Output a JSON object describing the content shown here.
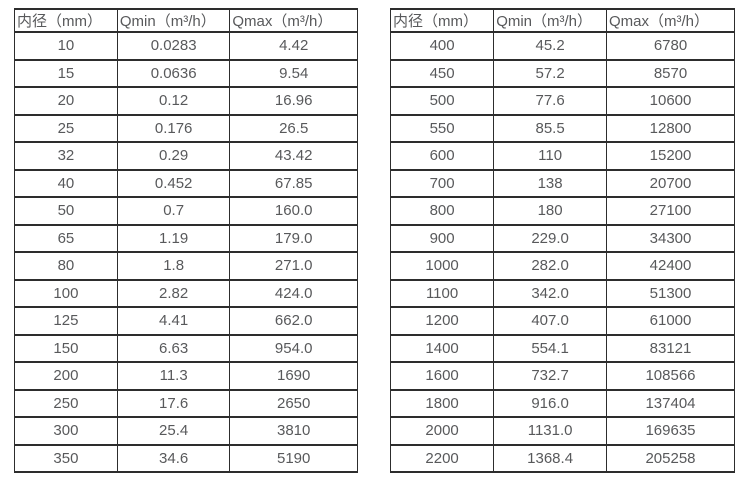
{
  "page": {
    "background_color": "#ffffff",
    "text_color": "#58595b",
    "border_color": "#2d2d2d"
  },
  "tables": [
    {
      "name": "flow-range-table-dn10-350",
      "headers": [
        "内径（mm）",
        "Qmin（m³/h）",
        "Qmax（m³/h）"
      ],
      "rows": [
        [
          "10",
          "0.0283",
          "4.42"
        ],
        [
          "15",
          "0.0636",
          "9.54"
        ],
        [
          "20",
          "0.12",
          "16.96"
        ],
        [
          "25",
          "0.176",
          "26.5"
        ],
        [
          "32",
          "0.29",
          "43.42"
        ],
        [
          "40",
          "0.452",
          "67.85"
        ],
        [
          "50",
          "0.7",
          "160.0"
        ],
        [
          "65",
          "1.19",
          "179.0"
        ],
        [
          "80",
          "1.8",
          "271.0"
        ],
        [
          "100",
          "2.82",
          "424.0"
        ],
        [
          "125",
          "4.41",
          "662.0"
        ],
        [
          "150",
          "6.63",
          "954.0"
        ],
        [
          "200",
          "11.3",
          "1690"
        ],
        [
          "250",
          "17.6",
          "2650"
        ],
        [
          "300",
          "25.4",
          "3810"
        ],
        [
          "350",
          "34.6",
          "5190"
        ]
      ]
    },
    {
      "name": "flow-range-table-dn400-2200",
      "headers": [
        "内径（mm）",
        "Qmin（m³/h）",
        "Qmax（m³/h）"
      ],
      "rows": [
        [
          "400",
          "45.2",
          "6780"
        ],
        [
          "450",
          "57.2",
          "8570"
        ],
        [
          "500",
          "77.6",
          "10600"
        ],
        [
          "550",
          "85.5",
          "12800"
        ],
        [
          "600",
          "110",
          "15200"
        ],
        [
          "700",
          "138",
          "20700"
        ],
        [
          "800",
          "180",
          "27100"
        ],
        [
          "900",
          "229.0",
          "34300"
        ],
        [
          "1000",
          "282.0",
          "42400"
        ],
        [
          "1100",
          "342.0",
          "51300"
        ],
        [
          "1200",
          "407.0",
          "61000"
        ],
        [
          "1400",
          "554.1",
          "83121"
        ],
        [
          "1600",
          "732.7",
          "108566"
        ],
        [
          "1800",
          "916.0",
          "137404"
        ],
        [
          "2000",
          "1131.0",
          "169635"
        ],
        [
          "2200",
          "1368.4",
          "205258"
        ]
      ]
    }
  ]
}
